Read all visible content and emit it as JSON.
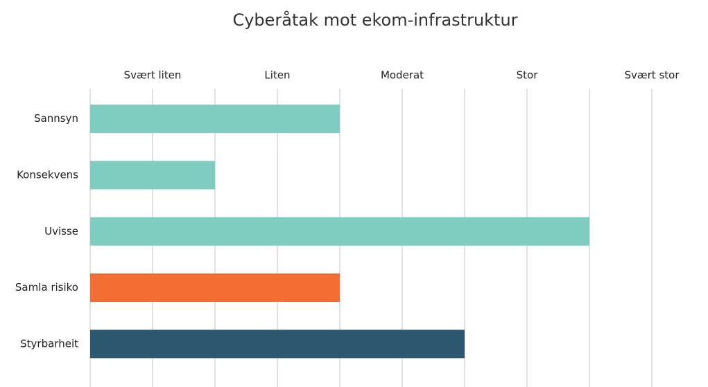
{
  "chart_data": {
    "type": "bar",
    "orientation": "horizontal",
    "title": "Cyberåtak mot ekom-infrastruktur",
    "categories": [
      "Sannsyn",
      "Konsekvens",
      "Uvisse",
      "Samla risiko",
      "Styrbarheit"
    ],
    "values": [
      2,
      1,
      4,
      2,
      3
    ],
    "colors": [
      "#7ecdc0",
      "#7ecdc0",
      "#7ecdc0",
      "#f26e33",
      "#2d566f"
    ],
    "xlim": [
      0,
      4.95
    ],
    "xticks": [
      {
        "value": 0.5,
        "label": "Svært liten"
      },
      {
        "value": 1.5,
        "label": "Liten"
      },
      {
        "value": 2.5,
        "label": "Moderat"
      },
      {
        "value": 3.5,
        "label": "Stor"
      },
      {
        "value": 4.5,
        "label": "Svært stor"
      }
    ],
    "minor_xticks": [
      0,
      1,
      2,
      3,
      4
    ],
    "grid": true
  }
}
